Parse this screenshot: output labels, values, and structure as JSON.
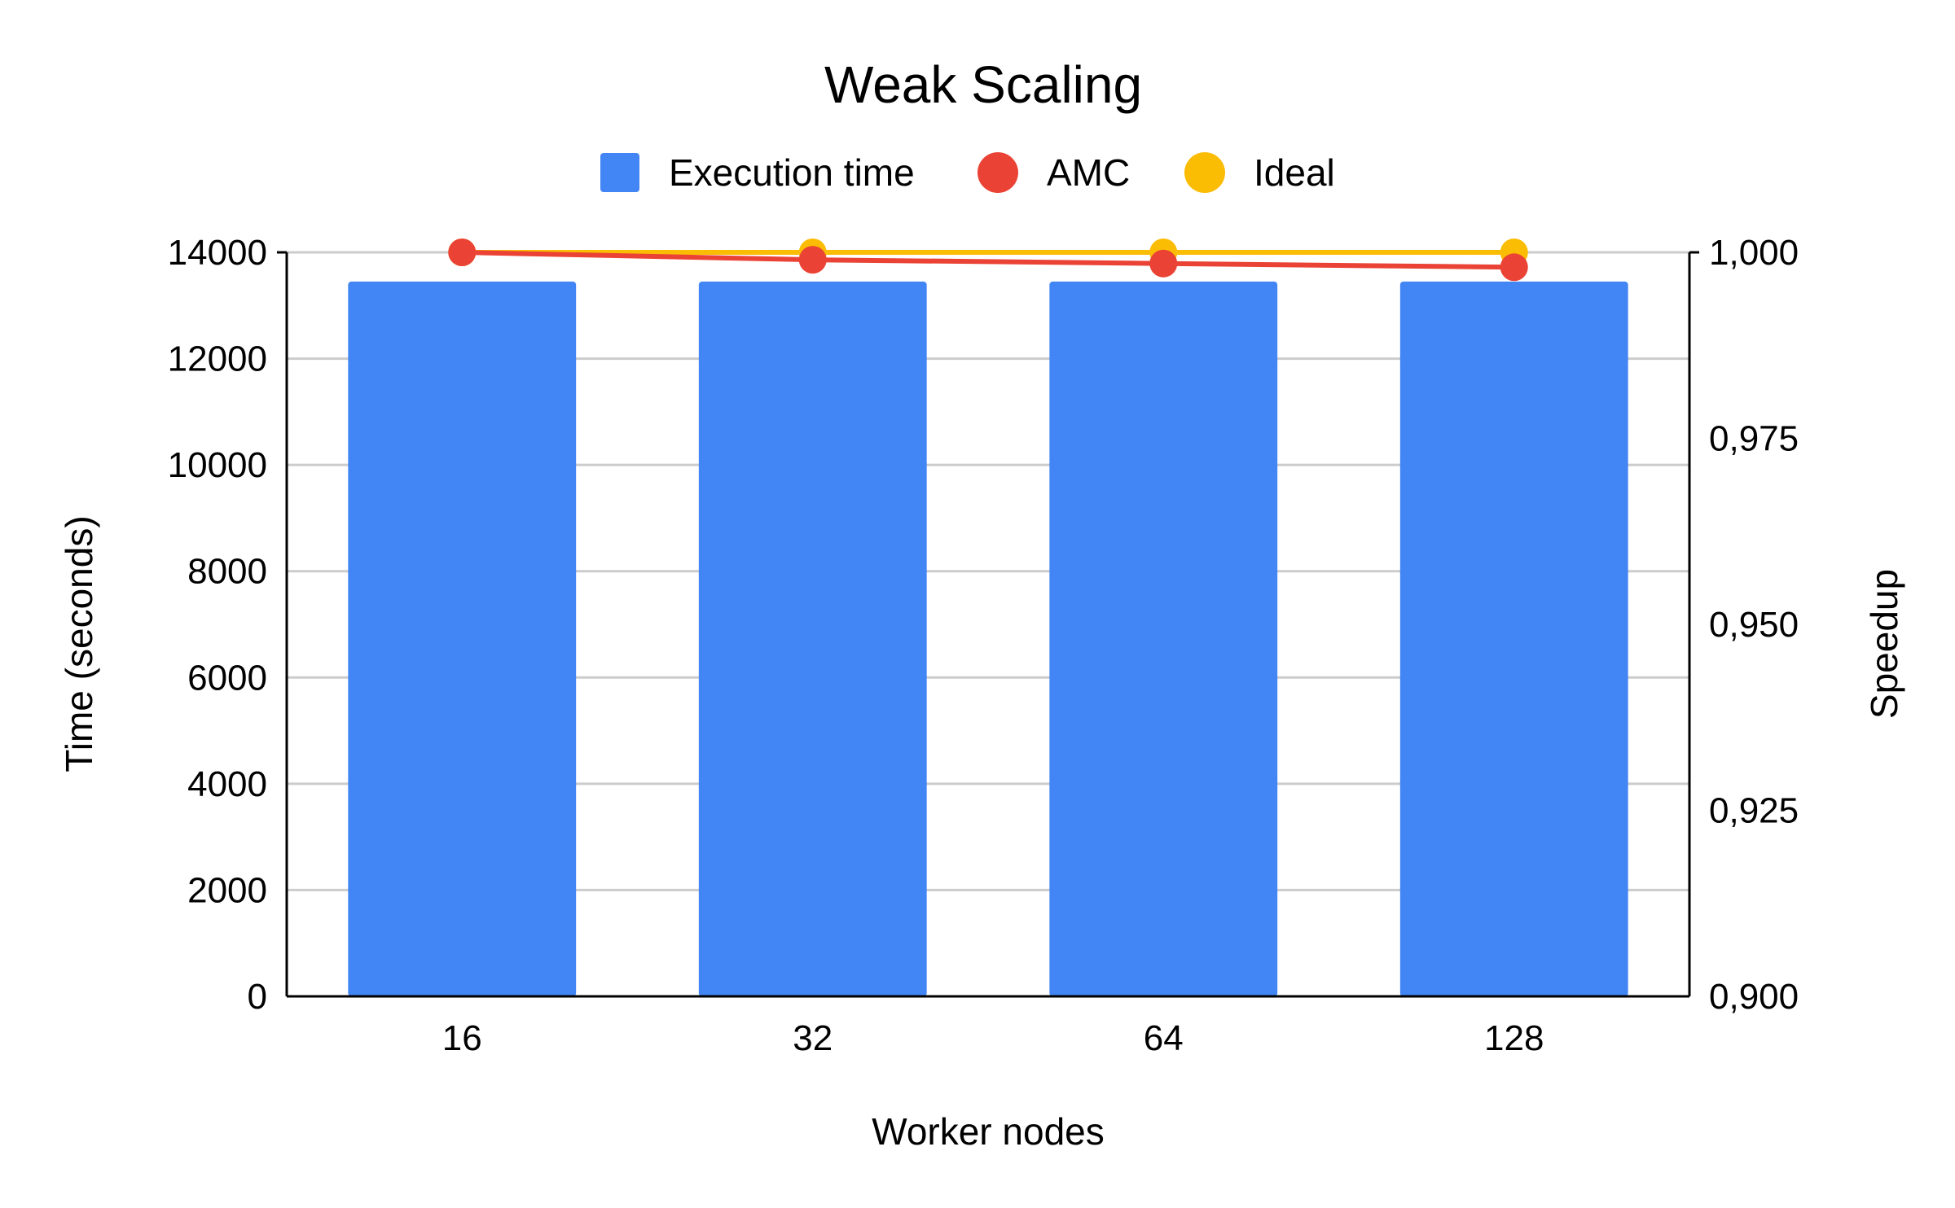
{
  "chart_data": {
    "type": "bar",
    "title": "Weak Scaling",
    "xlabel": "Worker nodes",
    "ylabel": "Time (seconds)",
    "y2label": "Speedup",
    "categories": [
      "16",
      "32",
      "64",
      "128"
    ],
    "ylim": [
      0,
      14000
    ],
    "y2lim": [
      0.9,
      1.0
    ],
    "yticks": [
      "0",
      "2000",
      "4000",
      "6000",
      "8000",
      "10000",
      "12000",
      "14000"
    ],
    "y2ticks": [
      "0,900",
      "0,925",
      "0,950",
      "0,975",
      "1,000"
    ],
    "grid": true,
    "legend_position": "top",
    "series": [
      {
        "name": "Execution time",
        "type": "bar",
        "axis": "left",
        "color": "#4285F4",
        "values": [
          13450,
          13450,
          13450,
          13450
        ]
      },
      {
        "name": "AMC",
        "type": "line",
        "axis": "right",
        "color": "#EA4335",
        "values": [
          1.0,
          0.999,
          0.9985,
          0.998
        ]
      },
      {
        "name": "Ideal",
        "type": "line",
        "axis": "right",
        "color": "#FBBC04",
        "values": [
          1.0,
          1.0,
          1.0,
          1.0
        ]
      }
    ]
  }
}
